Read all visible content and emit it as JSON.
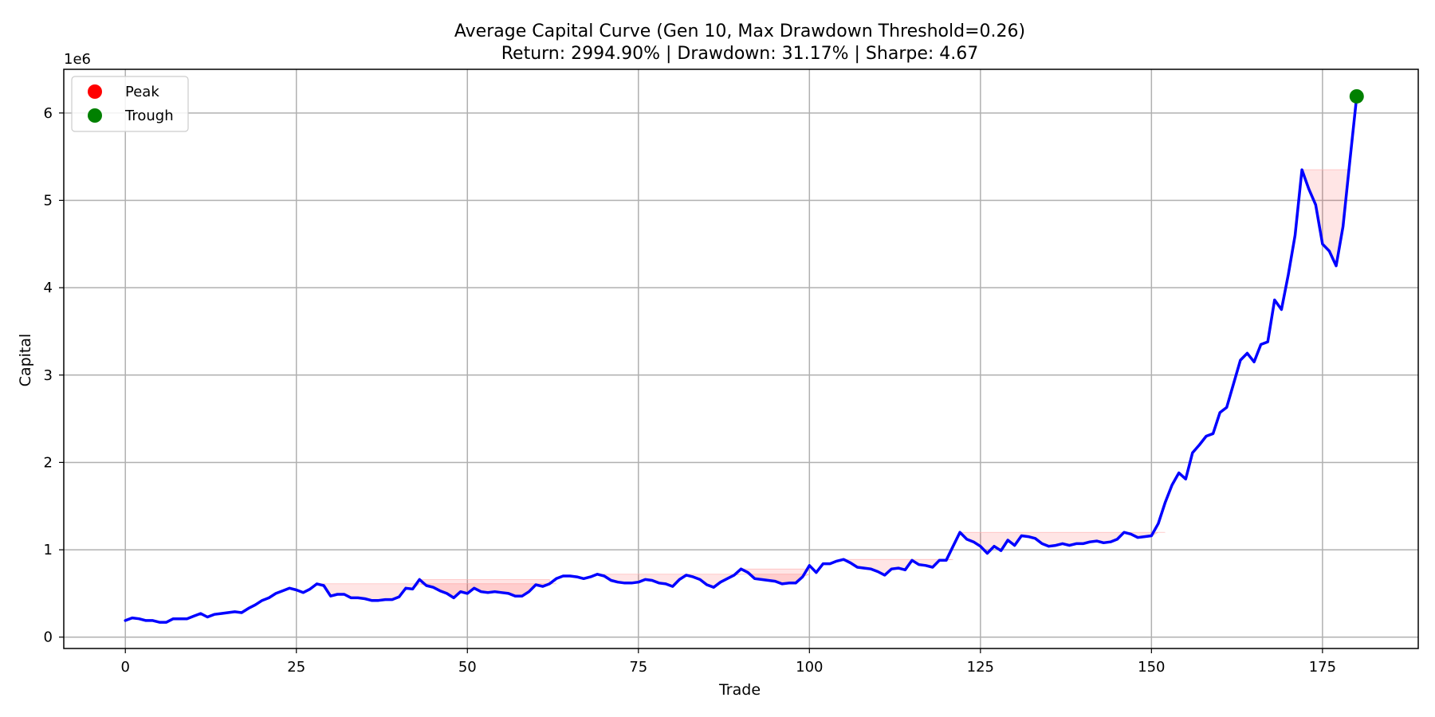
{
  "chart_data": {
    "type": "line",
    "title": "Average Capital Curve (Gen 10, Max Drawdown Threshold=0.26)",
    "subtitle": "Return: 2994.90% | Drawdown: 31.17% | Sharpe: 4.67",
    "xlabel": "Trade",
    "ylabel": "Capital",
    "y_offset_label": "1e6",
    "xlim": [
      -9,
      189
    ],
    "ylim": [
      -0.13,
      6.5
    ],
    "x_ticks": [
      0,
      25,
      50,
      75,
      100,
      125,
      150,
      175
    ],
    "y_ticks": [
      0,
      1,
      2,
      3,
      4,
      5,
      6
    ],
    "grid": true,
    "legend_position": "top-left",
    "legend": [
      {
        "label": "Peak",
        "color": "#ff0000"
      },
      {
        "label": "Trough",
        "color": "#008000"
      }
    ],
    "series": [
      {
        "color": "#0000ff",
        "unit_multiplier": 1000000,
        "values": [
          0.19,
          0.22,
          0.21,
          0.19,
          0.19,
          0.17,
          0.17,
          0.21,
          0.21,
          0.21,
          0.24,
          0.27,
          0.23,
          0.26,
          0.27,
          0.28,
          0.29,
          0.28,
          0.33,
          0.37,
          0.42,
          0.45,
          0.5,
          0.53,
          0.56,
          0.54,
          0.51,
          0.55,
          0.61,
          0.59,
          0.47,
          0.49,
          0.49,
          0.45,
          0.45,
          0.44,
          0.42,
          0.42,
          0.43,
          0.43,
          0.46,
          0.56,
          0.55,
          0.66,
          0.59,
          0.57,
          0.53,
          0.5,
          0.45,
          0.52,
          0.5,
          0.56,
          0.52,
          0.51,
          0.52,
          0.51,
          0.5,
          0.47,
          0.47,
          0.52,
          0.6,
          0.58,
          0.61,
          0.67,
          0.7,
          0.7,
          0.69,
          0.67,
          0.69,
          0.72,
          0.7,
          0.65,
          0.63,
          0.62,
          0.62,
          0.63,
          0.66,
          0.65,
          0.62,
          0.61,
          0.58,
          0.66,
          0.71,
          0.69,
          0.66,
          0.6,
          0.57,
          0.63,
          0.67,
          0.71,
          0.78,
          0.74,
          0.67,
          0.66,
          0.65,
          0.64,
          0.61,
          0.62,
          0.62,
          0.69,
          0.82,
          0.74,
          0.84,
          0.84,
          0.87,
          0.89,
          0.85,
          0.8,
          0.79,
          0.78,
          0.75,
          0.71,
          0.78,
          0.79,
          0.77,
          0.88,
          0.83,
          0.82,
          0.8,
          0.88,
          0.88,
          1.04,
          1.2,
          1.12,
          1.09,
          1.04,
          0.96,
          1.04,
          0.99,
          1.11,
          1.05,
          1.16,
          1.15,
          1.13,
          1.07,
          1.04,
          1.05,
          1.07,
          1.05,
          1.07,
          1.07,
          1.09,
          1.1,
          1.08,
          1.09,
          1.12,
          1.2,
          1.18,
          1.14,
          1.15,
          1.16,
          1.3,
          1.54,
          1.74,
          1.88,
          1.81,
          2.11,
          2.2,
          2.3,
          2.33,
          2.57,
          2.63,
          2.9,
          3.17,
          3.25,
          3.15,
          3.35,
          3.38,
          3.86,
          3.75,
          4.15,
          4.6,
          5.35,
          5.13,
          4.95,
          4.5,
          4.42,
          4.25,
          4.7,
          5.45,
          6.19
        ]
      }
    ],
    "drawdown_periods": [
      {
        "start": 28,
        "end": 63,
        "peak": 0.61
      },
      {
        "start": 43,
        "end": 62,
        "peak": 0.66
      },
      {
        "start": 69,
        "end": 100,
        "peak": 0.72
      },
      {
        "start": 90,
        "end": 100,
        "peak": 0.78
      },
      {
        "start": 105,
        "end": 121,
        "peak": 0.89
      },
      {
        "start": 122,
        "end": 152,
        "peak": 1.2
      },
      {
        "start": 172,
        "end": 179,
        "peak": 5.35
      }
    ],
    "markers": [
      {
        "label": "Trough",
        "x": 180,
        "y": 6.19,
        "color": "#008000"
      }
    ]
  }
}
